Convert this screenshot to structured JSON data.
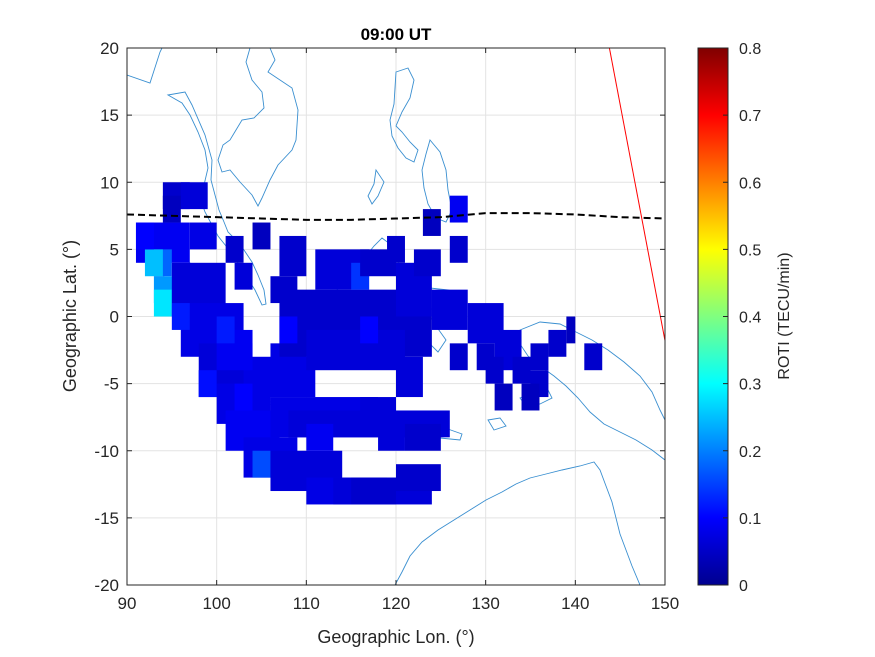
{
  "chart_data": {
    "type": "heatmap",
    "title": "09:00 UT",
    "xlabel": "Geographic Lon. (°)",
    "ylabel": "Geographic Lat. (°)",
    "xlim": [
      90,
      150
    ],
    "ylim": [
      -20,
      20
    ],
    "xticks": [
      "90",
      "100",
      "110",
      "120",
      "130",
      "140",
      "150"
    ],
    "yticks": [
      "20",
      "15",
      "10",
      "5",
      "0",
      "-5",
      "-10",
      "-15",
      "-20"
    ],
    "grid": true,
    "colorbar": {
      "label": "ROTI (TECU/min)",
      "colormap": "jet",
      "range": [
        0,
        0.8
      ],
      "ticks": [
        "0",
        "0.1",
        "0.2",
        "0.3",
        "0.4",
        "0.5",
        "0.6",
        "0.7",
        "0.8"
      ]
    },
    "magnetic_equator": {
      "style": "dashed",
      "color": "#000000",
      "points": [
        [
          90,
          7.6
        ],
        [
          95,
          7.5
        ],
        [
          100,
          7.4
        ],
        [
          105,
          7.3
        ],
        [
          110,
          7.2
        ],
        [
          115,
          7.2
        ],
        [
          120,
          7.3
        ],
        [
          125,
          7.4
        ],
        [
          130,
          7.7
        ],
        [
          135,
          7.7
        ],
        [
          140,
          7.6
        ],
        [
          145,
          7.4
        ],
        [
          150,
          7.3
        ]
      ]
    },
    "terminator": {
      "color": "#ff0000",
      "points": [
        [
          143.8,
          20
        ],
        [
          150,
          -1.8
        ]
      ]
    },
    "coastline_color": "#3a8fd0",
    "roti_cells": [
      {
        "lon": [
          91,
          97
        ],
        "lat": [
          4,
          7
        ],
        "roti": 0.09
      },
      {
        "lon": [
          93,
          95
        ],
        "lat": [
          3,
          5
        ],
        "roti": 0.18
      },
      {
        "lon": [
          92,
          94
        ],
        "lat": [
          3,
          5
        ],
        "roti": 0.25
      },
      {
        "lon": [
          93,
          96
        ],
        "lat": [
          1,
          3
        ],
        "roti": 0.22
      },
      {
        "lon": [
          93,
          95
        ],
        "lat": [
          0,
          2
        ],
        "roti": 0.28
      },
      {
        "lon": [
          94,
          97
        ],
        "lat": [
          8,
          10
        ],
        "roti": 0.06
      },
      {
        "lon": [
          96,
          99
        ],
        "lat": [
          8,
          10
        ],
        "roti": 0.07
      },
      {
        "lon": [
          94,
          96
        ],
        "lat": [
          7,
          9
        ],
        "roti": 0.05
      },
      {
        "lon": [
          97,
          100
        ],
        "lat": [
          5,
          7
        ],
        "roti": 0.08
      },
      {
        "lon": [
          95,
          101
        ],
        "lat": [
          0,
          4
        ],
        "roti": 0.07
      },
      {
        "lon": [
          96,
          103
        ],
        "lat": [
          -3,
          1
        ],
        "roti": 0.08
      },
      {
        "lon": [
          98,
          104
        ],
        "lat": [
          -6,
          -2
        ],
        "roti": 0.07
      },
      {
        "lon": [
          100,
          106
        ],
        "lat": [
          -8,
          -5
        ],
        "roti": 0.08
      },
      {
        "lon": [
          101,
          107
        ],
        "lat": [
          -10,
          -7
        ],
        "roti": 0.09
      },
      {
        "lon": [
          103,
          109
        ],
        "lat": [
          -12,
          -9
        ],
        "roti": 0.08
      },
      {
        "lon": [
          104,
          106
        ],
        "lat": [
          -12,
          -10
        ],
        "roti": 0.16
      },
      {
        "lon": [
          106,
          114
        ],
        "lat": [
          -13,
          -10
        ],
        "roti": 0.07
      },
      {
        "lon": [
          110,
          119
        ],
        "lat": [
          -14,
          -12
        ],
        "roti": 0.08
      },
      {
        "lon": [
          113,
          124
        ],
        "lat": [
          -14,
          -12
        ],
        "roti": 0.07
      },
      {
        "lon": [
          106,
          118
        ],
        "lat": [
          -9,
          -6
        ],
        "roti": 0.08
      },
      {
        "lon": [
          108,
          126
        ],
        "lat": [
          -9,
          -7
        ],
        "roti": 0.07
      },
      {
        "lon": [
          103,
          111
        ],
        "lat": [
          -6,
          -3
        ],
        "roti": 0.08
      },
      {
        "lon": [
          100,
          104
        ],
        "lat": [
          -4,
          -1
        ],
        "roti": 0.09
      },
      {
        "lon": [
          106,
          110
        ],
        "lat": [
          -5,
          -2
        ],
        "roti": 0.08
      },
      {
        "lon": [
          107,
          124
        ],
        "lat": [
          -3,
          2
        ],
        "roti": 0.06
      },
      {
        "lon": [
          110,
          121
        ],
        "lat": [
          -4,
          -1
        ],
        "roti": 0.07
      },
      {
        "lon": [
          111,
          117
        ],
        "lat": [
          2,
          5
        ],
        "roti": 0.07
      },
      {
        "lon": [
          115,
          117
        ],
        "lat": [
          2,
          4
        ],
        "roti": 0.14
      },
      {
        "lon": [
          116,
          120
        ],
        "lat": [
          3,
          5
        ],
        "roti": 0.06
      },
      {
        "lon": [
          120,
          124
        ],
        "lat": [
          0,
          4
        ],
        "roti": 0.07
      },
      {
        "lon": [
          122,
          125
        ],
        "lat": [
          3,
          5
        ],
        "roti": 0.06
      },
      {
        "lon": [
          124,
          128
        ],
        "lat": [
          -1,
          2
        ],
        "roti": 0.07
      },
      {
        "lon": [
          126,
          128
        ],
        "lat": [
          7,
          9
        ],
        "roti": 0.09
      },
      {
        "lon": [
          123,
          125
        ],
        "lat": [
          6,
          8
        ],
        "roti": 0.05
      },
      {
        "lon": [
          107,
          110
        ],
        "lat": [
          3,
          6
        ],
        "roti": 0.06
      },
      {
        "lon": [
          106,
          109
        ],
        "lat": [
          1,
          3
        ],
        "roti": 0.06
      },
      {
        "lon": [
          104,
          106
        ],
        "lat": [
          5,
          7
        ],
        "roti": 0.05
      },
      {
        "lon": [
          102,
          104
        ],
        "lat": [
          2,
          4
        ],
        "roti": 0.07
      },
      {
        "lon": [
          128,
          132
        ],
        "lat": [
          -2,
          1
        ],
        "roti": 0.07
      },
      {
        "lon": [
          131,
          134
        ],
        "lat": [
          -4,
          -1
        ],
        "roti": 0.07
      },
      {
        "lon": [
          133,
          135
        ],
        "lat": [
          -5,
          -3
        ],
        "roti": 0.06
      },
      {
        "lon": [
          135,
          137
        ],
        "lat": [
          -4,
          -2
        ],
        "roti": 0.06
      },
      {
        "lon": [
          137,
          139
        ],
        "lat": [
          -3,
          -1
        ],
        "roti": 0.06
      },
      {
        "lon": [
          139,
          140
        ],
        "lat": [
          -2,
          0
        ],
        "roti": 0.05
      },
      {
        "lon": [
          141,
          143
        ],
        "lat": [
          -4,
          -2
        ],
        "roti": 0.06
      },
      {
        "lon": [
          135,
          137
        ],
        "lat": [
          -6,
          -4
        ],
        "roti": 0.06
      },
      {
        "lon": [
          130,
          132
        ],
        "lat": [
          -5,
          -3
        ],
        "roti": 0.06
      },
      {
        "lon": [
          131,
          133
        ],
        "lat": [
          -7,
          -5
        ],
        "roti": 0.05
      },
      {
        "lon": [
          134,
          136
        ],
        "lat": [
          -7,
          -5
        ],
        "roti": 0.05
      },
      {
        "lon": [
          129,
          131
        ],
        "lat": [
          -4,
          -2
        ],
        "roti": 0.06
      },
      {
        "lon": [
          126,
          128
        ],
        "lat": [
          -4,
          -2
        ],
        "roti": 0.06
      },
      {
        "lon": [
          120,
          123
        ],
        "lat": [
          -6,
          -3
        ],
        "roti": 0.07
      },
      {
        "lon": [
          116,
          120
        ],
        "lat": [
          -8,
          -6
        ],
        "roti": 0.07
      },
      {
        "lon": [
          118,
          121
        ],
        "lat": [
          -10,
          -8
        ],
        "roti": 0.07
      },
      {
        "lon": [
          121,
          125
        ],
        "lat": [
          -10,
          -8
        ],
        "roti": 0.06
      },
      {
        "lon": [
          126,
          128
        ],
        "lat": [
          4,
          6
        ],
        "roti": 0.06
      },
      {
        "lon": [
          119,
          121
        ],
        "lat": [
          4,
          6
        ],
        "roti": 0.06
      },
      {
        "lon": [
          101,
          103
        ],
        "lat": [
          4,
          6
        ],
        "roti": 0.06
      },
      {
        "lon": [
          107,
          109
        ],
        "lat": [
          -2,
          0
        ],
        "roti": 0.1
      },
      {
        "lon": [
          100,
          102
        ],
        "lat": [
          -2,
          0
        ],
        "roti": 0.12
      },
      {
        "lon": [
          116,
          118
        ],
        "lat": [
          -2,
          0
        ],
        "roti": 0.1
      },
      {
        "lon": [
          110,
          113
        ],
        "lat": [
          -10,
          -8
        ],
        "roti": 0.09
      },
      {
        "lon": [
          102,
          104
        ],
        "lat": [
          -7,
          -5
        ],
        "roti": 0.1
      },
      {
        "lon": [
          98,
          100
        ],
        "lat": [
          -6,
          -4
        ],
        "roti": 0.11
      },
      {
        "lon": [
          95,
          97
        ],
        "lat": [
          -1,
          1
        ],
        "roti": 0.12
      },
      {
        "lon": [
          91,
          93
        ],
        "lat": [
          5,
          7
        ],
        "roti": 0.1
      },
      {
        "lon": [
          120,
          125
        ],
        "lat": [
          -13,
          -11
        ],
        "roti": 0.06
      },
      {
        "lon": [
          115,
          120
        ],
        "lat": [
          -14,
          -12
        ],
        "roti": 0.06
      }
    ]
  }
}
